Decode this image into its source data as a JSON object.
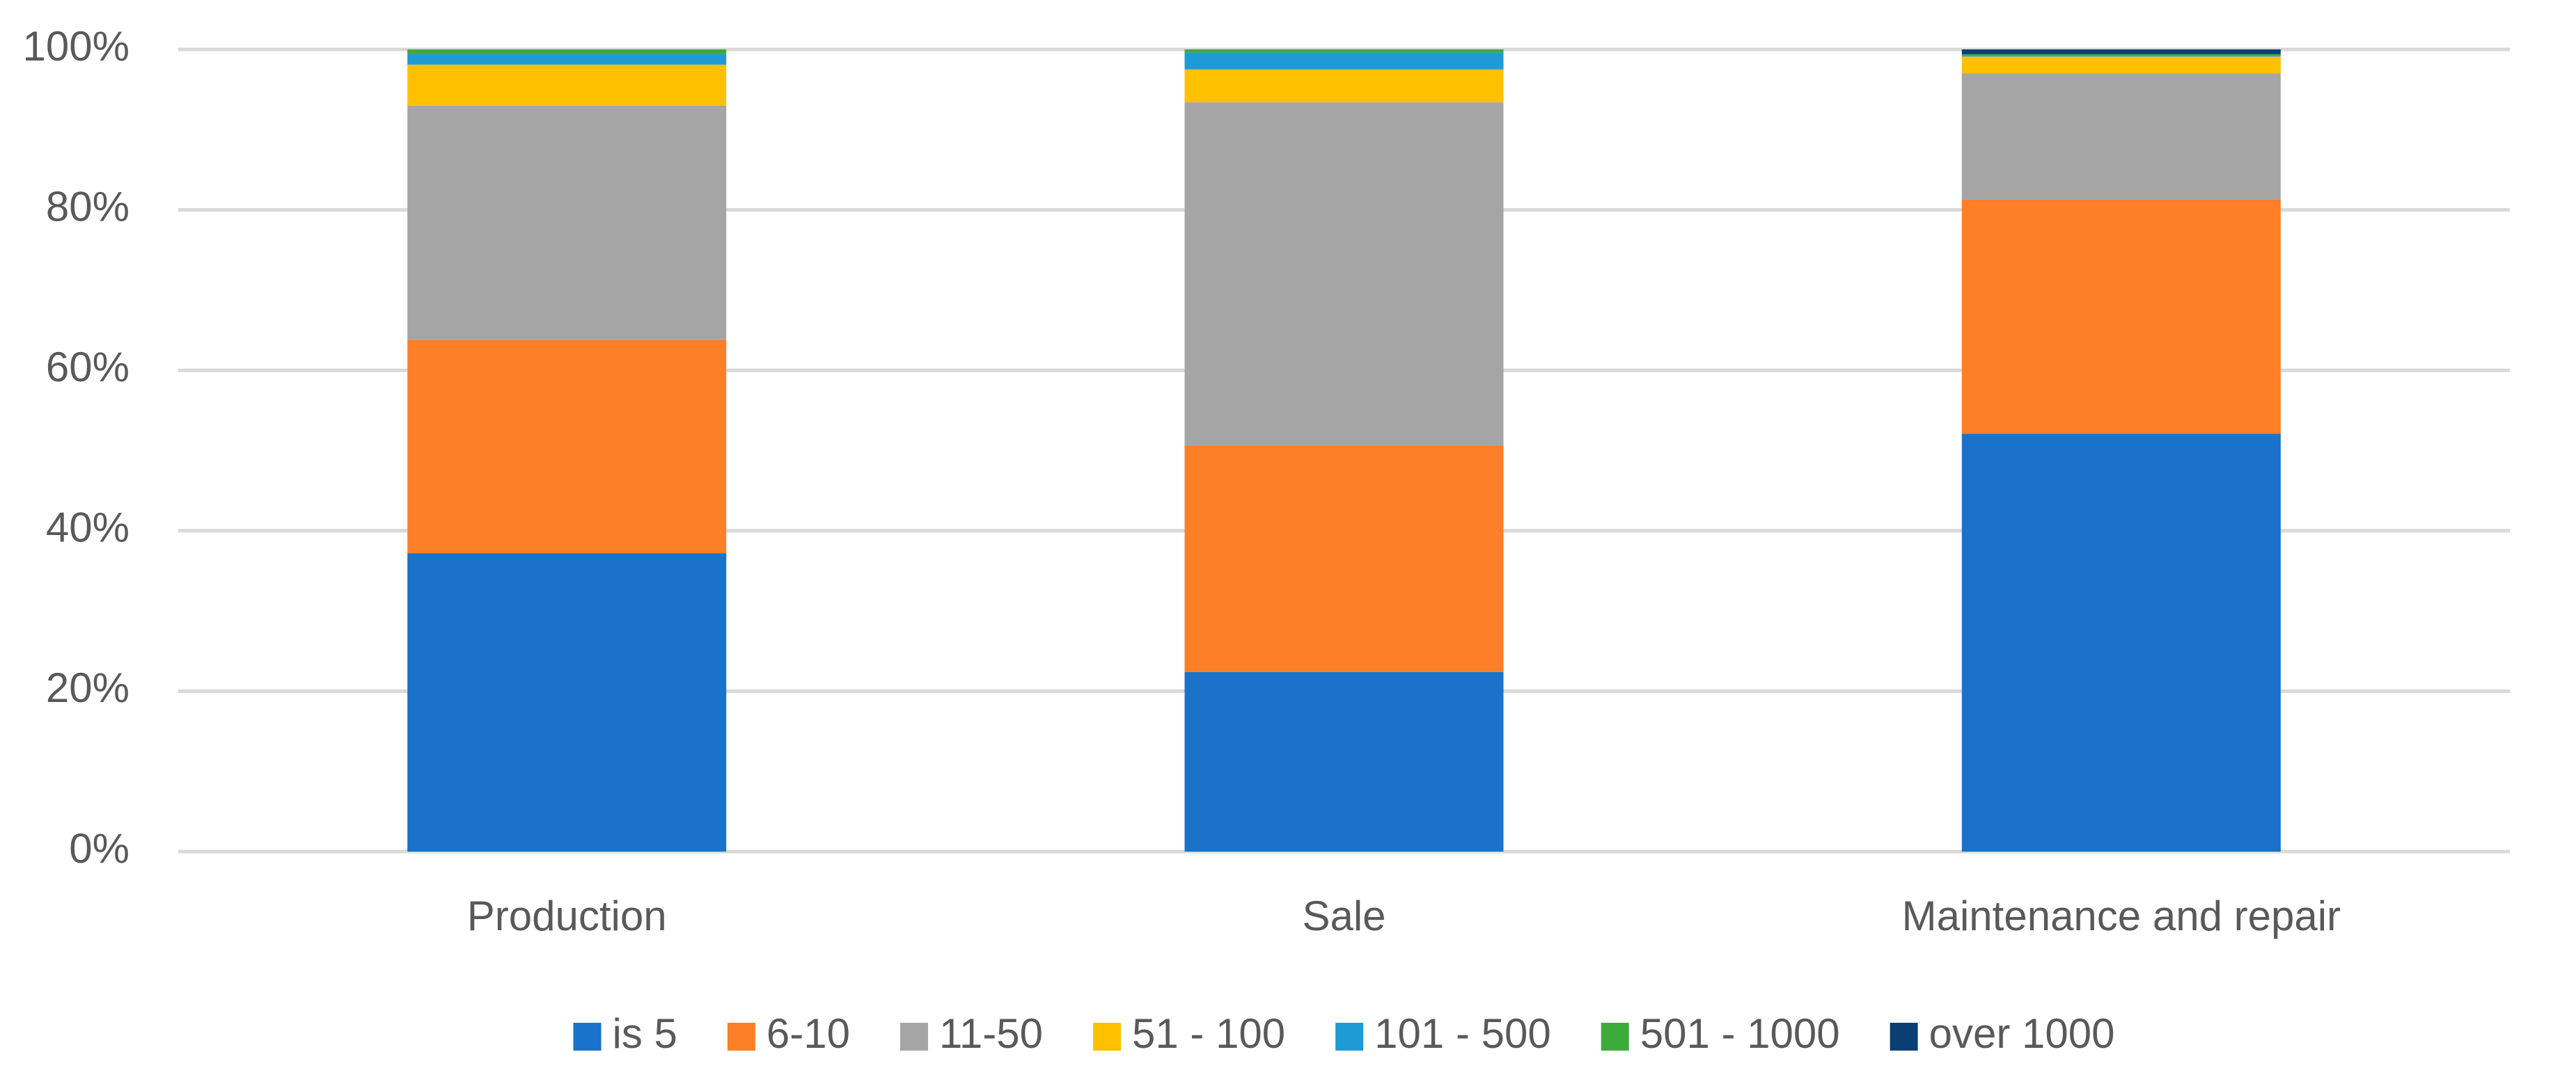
{
  "chart_data": {
    "type": "stacked_bar",
    "categories": [
      "Production",
      "Sale",
      "Maintenance and repair"
    ],
    "series": [
      {
        "name": "is 5",
        "color": "#1a73c8",
        "values": [
          37.2,
          22.4,
          52.1
        ]
      },
      {
        "name": "6-10",
        "color": "#fd7f27",
        "values": [
          26.6,
          28.2,
          29.2
        ]
      },
      {
        "name": "11-50",
        "color": "#a5a5a5",
        "values": [
          29.2,
          42.8,
          15.7
        ]
      },
      {
        "name": "51 - 100",
        "color": "#ffc000",
        "values": [
          5.1,
          4.1,
          2.1
        ]
      },
      {
        "name": "101 - 500",
        "color": "#1e9bd7",
        "values": [
          1.3,
          2.1,
          0.2
        ]
      },
      {
        "name": "501 - 1000",
        "color": "#3cab3c",
        "values": [
          0.6,
          0.4,
          0.1
        ]
      },
      {
        "name": "over 1000",
        "color": "#0b3f73",
        "values": [
          0,
          0,
          0.6
        ]
      }
    ],
    "ylim": [
      0,
      100
    ],
    "yticks": [
      {
        "value": 0,
        "label": "0%"
      },
      {
        "value": 20,
        "label": "20%"
      },
      {
        "value": 40,
        "label": "40%"
      },
      {
        "value": 60,
        "label": "60%"
      },
      {
        "value": 80,
        "label": "80%"
      },
      {
        "value": 100,
        "label": "100%"
      }
    ],
    "grid": true,
    "legend": "bottom"
  }
}
